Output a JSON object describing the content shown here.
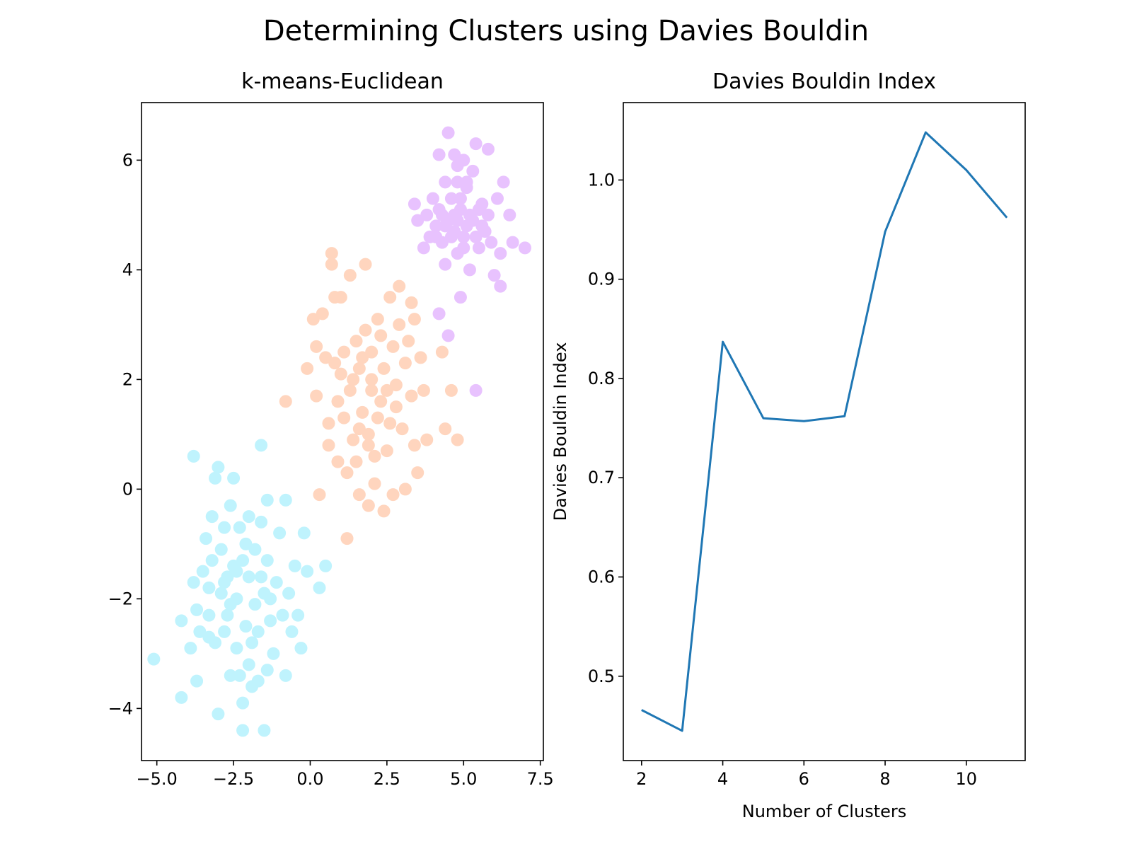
{
  "figure": {
    "title": "Determining Clusters using Davies Bouldin"
  },
  "chart_data": [
    {
      "type": "scatter",
      "title": "k-means-Euclidean",
      "xlabel": "",
      "ylabel": "",
      "xlim": [
        -5.5,
        7.6
      ],
      "ylim": [
        -4.95,
        7.05
      ],
      "xticks": [
        -5.0,
        -2.5,
        0.0,
        2.5,
        5.0,
        7.5
      ],
      "xtick_labels": [
        "−5.0",
        "−2.5",
        "0.0",
        "2.5",
        "5.0",
        "7.5"
      ],
      "yticks": [
        -4,
        -2,
        0,
        2,
        4,
        6
      ],
      "ytick_labels": [
        "−4",
        "−2",
        "0",
        "2",
        "4",
        "6"
      ],
      "grid": false,
      "series": [
        {
          "color": "#bff3fd",
          "points": [
            [
              -5.1,
              -3.1
            ],
            [
              -4.2,
              -2.4
            ],
            [
              -4.2,
              -3.8
            ],
            [
              -3.9,
              -2.9
            ],
            [
              -3.8,
              -1.7
            ],
            [
              -3.8,
              0.6
            ],
            [
              -3.7,
              -3.5
            ],
            [
              -3.7,
              -2.2
            ],
            [
              -3.5,
              -1.5
            ],
            [
              -3.4,
              -0.9
            ],
            [
              -3.3,
              -2.7
            ],
            [
              -3.3,
              -2.3
            ],
            [
              -3.2,
              -0.5
            ],
            [
              -3.2,
              -1.3
            ],
            [
              -3.1,
              -2.8
            ],
            [
              -3.1,
              0.2
            ],
            [
              -3.0,
              -4.1
            ],
            [
              -3.0,
              0.4
            ],
            [
              -2.9,
              -1.1
            ],
            [
              -2.9,
              -1.9
            ],
            [
              -2.8,
              -2.6
            ],
            [
              -2.8,
              -0.7
            ],
            [
              -2.7,
              -1.6
            ],
            [
              -2.7,
              -2.3
            ],
            [
              -2.6,
              -3.4
            ],
            [
              -2.6,
              -0.3
            ],
            [
              -2.5,
              -1.4
            ],
            [
              -2.5,
              0.2
            ],
            [
              -2.4,
              -2.0
            ],
            [
              -2.4,
              -2.9
            ],
            [
              -2.3,
              -3.4
            ],
            [
              -2.3,
              -0.7
            ],
            [
              -2.2,
              -4.4
            ],
            [
              -2.2,
              -3.9
            ],
            [
              -2.1,
              -2.5
            ],
            [
              -2.1,
              -1.0
            ],
            [
              -2.0,
              -3.2
            ],
            [
              -2.0,
              -1.6
            ],
            [
              -2.0,
              -0.5
            ],
            [
              -1.9,
              -3.6
            ],
            [
              -1.8,
              -2.1
            ],
            [
              -1.8,
              -1.1
            ],
            [
              -1.7,
              -3.5
            ],
            [
              -1.7,
              -2.6
            ],
            [
              -1.6,
              -0.6
            ],
            [
              -1.6,
              0.8
            ],
            [
              -1.5,
              -1.9
            ],
            [
              -1.5,
              -4.4
            ],
            [
              -1.4,
              -3.3
            ],
            [
              -1.4,
              -1.3
            ],
            [
              -1.4,
              -0.2
            ],
            [
              -1.3,
              -2.4
            ],
            [
              -1.2,
              -3.0
            ],
            [
              -1.1,
              -1.7
            ],
            [
              -1.0,
              -0.8
            ],
            [
              -0.9,
              -2.3
            ],
            [
              -0.8,
              -3.4
            ],
            [
              -0.8,
              -0.2
            ],
            [
              -0.7,
              -1.9
            ],
            [
              -0.6,
              -2.6
            ],
            [
              -0.5,
              -1.4
            ],
            [
              -0.4,
              -2.3
            ],
            [
              -0.3,
              -2.9
            ],
            [
              -0.2,
              -0.8
            ],
            [
              -0.1,
              -1.5
            ],
            [
              0.3,
              -1.8
            ],
            [
              0.5,
              -1.4
            ],
            [
              -2.8,
              -1.7
            ],
            [
              -2.6,
              -2.1
            ],
            [
              -2.2,
              -1.3
            ],
            [
              -1.9,
              -2.8
            ],
            [
              -1.6,
              -1.6
            ],
            [
              -1.3,
              -2.0
            ],
            [
              -2.4,
              -1.5
            ],
            [
              -3.6,
              -2.6
            ],
            [
              -3.3,
              -1.8
            ]
          ]
        },
        {
          "color": "#ffd5be",
          "points": [
            [
              -0.8,
              1.6
            ],
            [
              -0.1,
              2.2
            ],
            [
              0.1,
              3.1
            ],
            [
              0.2,
              1.7
            ],
            [
              0.2,
              2.6
            ],
            [
              0.4,
              3.2
            ],
            [
              0.3,
              -0.1
            ],
            [
              0.6,
              1.2
            ],
            [
              0.6,
              0.8
            ],
            [
              0.7,
              4.3
            ],
            [
              0.7,
              4.1
            ],
            [
              0.8,
              2.3
            ],
            [
              0.8,
              3.5
            ],
            [
              0.9,
              1.6
            ],
            [
              0.9,
              0.5
            ],
            [
              1.0,
              2.1
            ],
            [
              1.0,
              3.5
            ],
            [
              1.1,
              1.3
            ],
            [
              1.2,
              0.3
            ],
            [
              1.2,
              -0.9
            ],
            [
              1.3,
              3.9
            ],
            [
              1.3,
              1.8
            ],
            [
              1.4,
              0.9
            ],
            [
              1.5,
              2.7
            ],
            [
              1.5,
              0.5
            ],
            [
              1.6,
              -0.1
            ],
            [
              1.6,
              2.2
            ],
            [
              1.7,
              1.4
            ],
            [
              1.8,
              4.1
            ],
            [
              1.8,
              2.9
            ],
            [
              1.9,
              0.8
            ],
            [
              1.9,
              -0.3
            ],
            [
              2.0,
              1.8
            ],
            [
              2.0,
              2.5
            ],
            [
              2.1,
              0.1
            ],
            [
              2.1,
              0.6
            ],
            [
              2.2,
              3.1
            ],
            [
              2.3,
              1.6
            ],
            [
              2.4,
              -0.4
            ],
            [
              2.4,
              2.2
            ],
            [
              2.5,
              0.7
            ],
            [
              2.6,
              1.2
            ],
            [
              2.6,
              3.5
            ],
            [
              2.7,
              2.6
            ],
            [
              2.7,
              -0.1
            ],
            [
              2.8,
              1.9
            ],
            [
              2.9,
              3.0
            ],
            [
              2.9,
              3.7
            ],
            [
              3.0,
              1.1
            ],
            [
              3.1,
              2.3
            ],
            [
              3.2,
              2.7
            ],
            [
              3.3,
              1.7
            ],
            [
              3.3,
              3.4
            ],
            [
              3.4,
              0.8
            ],
            [
              3.5,
              0.3
            ],
            [
              3.6,
              2.4
            ],
            [
              3.7,
              1.8
            ],
            [
              3.8,
              0.9
            ],
            [
              4.3,
              2.5
            ],
            [
              4.4,
              1.1
            ],
            [
              4.6,
              1.8
            ],
            [
              4.8,
              0.9
            ],
            [
              1.6,
              1.1
            ],
            [
              2.2,
              1.3
            ],
            [
              1.4,
              2.0
            ],
            [
              2.0,
              2.0
            ],
            [
              2.8,
              1.5
            ],
            [
              1.1,
              2.5
            ],
            [
              0.5,
              2.4
            ],
            [
              3.4,
              3.1
            ],
            [
              3.1,
              0.0
            ],
            [
              2.3,
              2.8
            ],
            [
              1.9,
              1.0
            ],
            [
              2.5,
              1.8
            ],
            [
              1.7,
              2.4
            ]
          ]
        },
        {
          "color": "#e8c2fe",
          "points": [
            [
              3.4,
              5.2
            ],
            [
              3.5,
              4.9
            ],
            [
              3.7,
              4.4
            ],
            [
              3.8,
              5.0
            ],
            [
              3.9,
              4.6
            ],
            [
              4.0,
              5.3
            ],
            [
              4.1,
              4.8
            ],
            [
              4.2,
              6.1
            ],
            [
              4.2,
              5.1
            ],
            [
              4.3,
              4.5
            ],
            [
              4.4,
              5.6
            ],
            [
              4.4,
              4.1
            ],
            [
              4.5,
              6.5
            ],
            [
              4.5,
              4.9
            ],
            [
              4.6,
              5.3
            ],
            [
              4.7,
              4.7
            ],
            [
              4.7,
              6.1
            ],
            [
              4.8,
              5.9
            ],
            [
              4.8,
              4.3
            ],
            [
              4.9,
              5.1
            ],
            [
              5.0,
              6.0
            ],
            [
              5.0,
              4.6
            ],
            [
              5.1,
              5.5
            ],
            [
              5.2,
              4.0
            ],
            [
              5.3,
              4.9
            ],
            [
              5.3,
              5.8
            ],
            [
              5.4,
              6.3
            ],
            [
              5.5,
              4.4
            ],
            [
              5.6,
              5.2
            ],
            [
              5.7,
              4.7
            ],
            [
              5.8,
              6.2
            ],
            [
              5.8,
              5.0
            ],
            [
              5.9,
              4.5
            ],
            [
              6.0,
              3.9
            ],
            [
              6.1,
              5.3
            ],
            [
              6.2,
              4.3
            ],
            [
              6.2,
              3.7
            ],
            [
              6.3,
              5.6
            ],
            [
              6.5,
              5.0
            ],
            [
              6.6,
              4.5
            ],
            [
              7.0,
              4.4
            ],
            [
              4.2,
              3.2
            ],
            [
              4.5,
              2.8
            ],
            [
              4.9,
              3.5
            ],
            [
              5.4,
              1.8
            ],
            [
              4.8,
              4.9
            ],
            [
              5.1,
              4.8
            ],
            [
              4.6,
              4.6
            ],
            [
              5.2,
              5.0
            ],
            [
              4.9,
              5.3
            ],
            [
              4.4,
              4.8
            ],
            [
              5.5,
              5.1
            ],
            [
              4.7,
              5.0
            ],
            [
              5.0,
              4.4
            ],
            [
              4.3,
              5.0
            ],
            [
              5.6,
              4.8
            ],
            [
              4.1,
              4.6
            ],
            [
              5.4,
              4.6
            ],
            [
              4.8,
              5.6
            ],
            [
              5.1,
              5.6
            ]
          ]
        }
      ]
    },
    {
      "type": "line",
      "title": "Davies Bouldin Index",
      "xlabel": "Number of Clusters",
      "ylabel": "Davies Bouldin Index",
      "xlim": [
        1.55,
        11.45
      ],
      "ylim": [
        0.415,
        1.078
      ],
      "xticks": [
        2,
        4,
        6,
        8,
        10
      ],
      "xtick_labels": [
        "2",
        "4",
        "6",
        "8",
        "10"
      ],
      "yticks": [
        0.5,
        0.6,
        0.7,
        0.8,
        0.9,
        1.0
      ],
      "ytick_labels": [
        "0.5",
        "0.6",
        "0.7",
        "0.8",
        "0.9",
        "1.0"
      ],
      "grid": false,
      "series": [
        {
          "color": "#1f77b4",
          "x": [
            2,
            3,
            4,
            5,
            6,
            7,
            8,
            9,
            10,
            11
          ],
          "values": [
            0.466,
            0.445,
            0.837,
            0.76,
            0.757,
            0.762,
            0.948,
            1.048,
            1.01,
            0.962
          ]
        }
      ]
    }
  ]
}
